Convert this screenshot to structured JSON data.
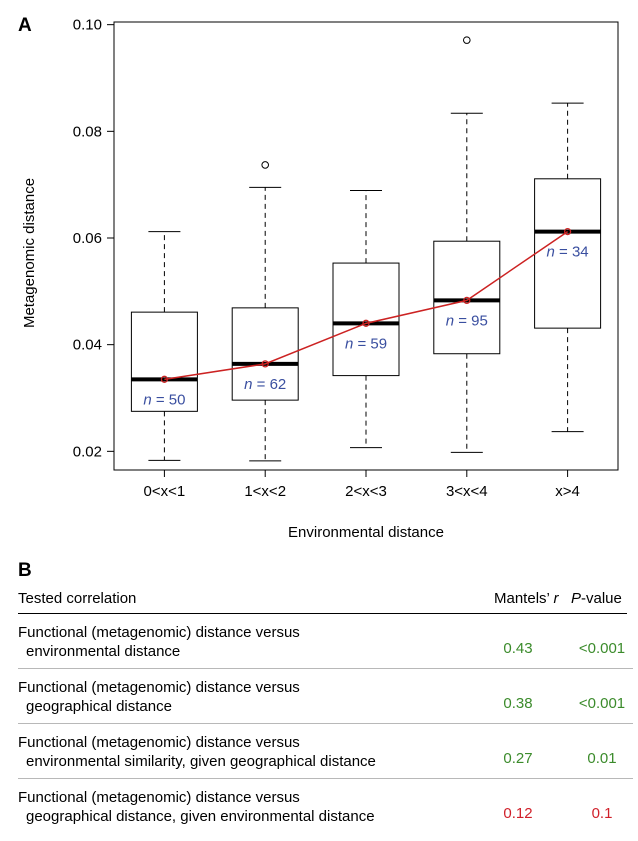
{
  "panel_a": {
    "letter": "A"
  },
  "panel_b": {
    "letter": "B",
    "headers": {
      "correlation": "Tested correlation",
      "r": "Mantels’ r",
      "p": "P-value"
    },
    "rows": [
      {
        "line1": "Functional (metagenomic) distance versus",
        "line2": "environmental distance",
        "r": "0.43",
        "p": "<0.001",
        "color": "#3b8b2b"
      },
      {
        "line1": "Functional (metagenomic) distance versus",
        "line2": "geographical distance",
        "r": "0.38",
        "p": "<0.001",
        "color": "#3b8b2b"
      },
      {
        "line1": "Functional (metagenomic) distance versus",
        "line2": "environmental similarity, given geographical distance",
        "r": "0.27",
        "p": "0.01",
        "color": "#3b8b2b"
      },
      {
        "line1": "Functional (metagenomic) distance versus",
        "line2": "geographical distance, given environmental distance",
        "r": "0.12",
        "p": "0.1",
        "color": "#d0202a"
      }
    ]
  },
  "chart_data": {
    "type": "box",
    "xlabel": "Environmental distance",
    "ylabel": "Metagenomic distance",
    "ylim": [
      0.0165,
      0.1005
    ],
    "yticks": [
      0.02,
      0.04,
      0.06,
      0.08,
      0.1
    ],
    "ytick_labels": [
      "0.02",
      "0.04",
      "0.06",
      "0.08",
      "0.10"
    ],
    "grid": false,
    "categories": [
      "0<x<1",
      "1<x<2",
      "2<x<3",
      "3<x<4",
      "x>4"
    ],
    "boxes": [
      {
        "min": 0.0183,
        "q1": 0.0275,
        "median": 0.0335,
        "q3": 0.0461,
        "max": 0.0612,
        "outliers": [],
        "n_label": "n = 50"
      },
      {
        "min": 0.0182,
        "q1": 0.0296,
        "median": 0.0364,
        "q3": 0.0469,
        "max": 0.0695,
        "outliers": [
          0.0737
        ],
        "n_label": "n = 62"
      },
      {
        "min": 0.0207,
        "q1": 0.0342,
        "median": 0.044,
        "q3": 0.0553,
        "max": 0.0689,
        "outliers": [],
        "n_label": "n = 59"
      },
      {
        "min": 0.0198,
        "q1": 0.0383,
        "median": 0.0483,
        "q3": 0.0594,
        "max": 0.0834,
        "outliers": [
          0.0971
        ],
        "n_label": "n = 95"
      },
      {
        "min": 0.0237,
        "q1": 0.0431,
        "median": 0.0612,
        "q3": 0.0711,
        "max": 0.0853,
        "outliers": [],
        "n_label": "n = 34"
      }
    ],
    "median_line_color": "#cc2222",
    "n_label_color": "#3a4fa0"
  }
}
